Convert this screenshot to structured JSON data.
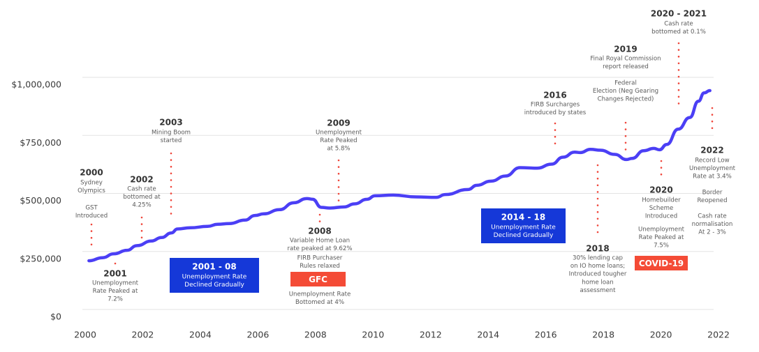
{
  "chart_data": {
    "type": "line",
    "title": "",
    "xlabel": "",
    "ylabel": "",
    "xlim": [
      2000,
      2022
    ],
    "ylim": [
      0,
      1000000
    ],
    "x_ticks": [
      "2000",
      "2002",
      "2004",
      "2006",
      "2008",
      "2010",
      "2012",
      "2014",
      "2016",
      "2018",
      "2020",
      "2022"
    ],
    "y_ticks": [
      "$0",
      "$250,000",
      "$500,000",
      "$750,000",
      "$1,000,000"
    ],
    "y_tick_values": [
      0,
      250000,
      500000,
      750000,
      1000000
    ],
    "grid": "horizontal",
    "legend": "none",
    "series": [
      {
        "color": "#4b3ff5",
        "points": [
          [
            2000.13,
            210000
          ],
          [
            2000.6,
            223000
          ],
          [
            2001.0,
            240000
          ],
          [
            2001.45,
            255000
          ],
          [
            2001.8,
            275000
          ],
          [
            2002.3,
            295000
          ],
          [
            2002.65,
            310000
          ],
          [
            2003.0,
            330000
          ],
          [
            2003.2,
            347000
          ],
          [
            2003.65,
            352000
          ],
          [
            2004.25,
            358000
          ],
          [
            2004.6,
            367000
          ],
          [
            2005.0,
            370000
          ],
          [
            2005.55,
            385000
          ],
          [
            2005.9,
            405000
          ],
          [
            2006.2,
            412000
          ],
          [
            2006.75,
            430000
          ],
          [
            2007.25,
            460000
          ],
          [
            2007.7,
            478000
          ],
          [
            2007.9,
            475000
          ],
          [
            2008.2,
            440000
          ],
          [
            2008.5,
            437000
          ],
          [
            2009.0,
            442000
          ],
          [
            2009.35,
            455000
          ],
          [
            2009.8,
            475000
          ],
          [
            2010.06,
            490000
          ],
          [
            2010.7,
            493000
          ],
          [
            2011.5,
            485000
          ],
          [
            2012.2,
            483000
          ],
          [
            2012.5,
            495000
          ],
          [
            2013.3,
            517000
          ],
          [
            2013.6,
            535000
          ],
          [
            2014.1,
            553000
          ],
          [
            2014.6,
            575000
          ],
          [
            2015.1,
            611000
          ],
          [
            2015.7,
            609000
          ],
          [
            2016.2,
            626000
          ],
          [
            2016.6,
            656000
          ],
          [
            2017.0,
            678000
          ],
          [
            2017.2,
            676000
          ],
          [
            2017.55,
            690000
          ],
          [
            2017.9,
            686000
          ],
          [
            2018.4,
            668000
          ],
          [
            2018.8,
            646000
          ],
          [
            2019.0,
            651000
          ],
          [
            2019.4,
            684000
          ],
          [
            2019.75,
            694000
          ],
          [
            2019.95,
            688000
          ],
          [
            2020.2,
            711000
          ],
          [
            2020.6,
            777000
          ],
          [
            2021.0,
            827000
          ],
          [
            2021.3,
            897000
          ],
          [
            2021.5,
            933000
          ],
          [
            2021.7,
            943000
          ]
        ]
      }
    ],
    "annotations": [
      {
        "title": "2000",
        "blocks": [
          [
            "Sydney",
            "Olympics"
          ],
          [
            "GST",
            "Introduced"
          ]
        ]
      },
      {
        "title": "2001",
        "blocks": [
          [
            "Unemployment",
            "Rate Peaked at",
            "7.2%"
          ]
        ]
      },
      {
        "title": "2002",
        "blocks": [
          [
            "Cash rate",
            "bottomed at",
            "4.25%"
          ]
        ]
      },
      {
        "title": "2003",
        "blocks": [
          [
            "Mining Boom",
            "started"
          ]
        ]
      },
      {
        "title": "2008",
        "blocks": [
          [
            "Variable Home Loan",
            "rate peaked at 9.62%"
          ],
          [
            "FIRB Purchaser",
            "Rules relaxed"
          ],
          [
            "Unemployment Rate",
            "Bottomed at 4%"
          ]
        ]
      },
      {
        "title": "2009",
        "blocks": [
          [
            "Unemployment",
            "Rate Peaked",
            "at 5.8%"
          ]
        ]
      },
      {
        "title": "2016",
        "blocks": [
          [
            "FIRB Surcharges",
            "introduced by states"
          ]
        ]
      },
      {
        "title": "2018",
        "blocks": [
          [
            "30% lending cap",
            "on IO home loans;",
            "Introduced tougher",
            "home loan",
            "assessment"
          ]
        ]
      },
      {
        "title": "2019",
        "blocks": [
          [
            "Final Royal Commission",
            "report released"
          ],
          [
            "Federal",
            "Election (Neg Gearing",
            "Changes Rejected)"
          ]
        ]
      },
      {
        "title": "2020",
        "blocks": [
          [
            "Homebuilder",
            "Scheme",
            "Introduced"
          ],
          [
            "Unemployment",
            "Rate Peaked at",
            "7.5%"
          ]
        ]
      },
      {
        "title": "2020 - 2021",
        "blocks": [
          [
            "Cash rate",
            "bottomed at 0.1%"
          ]
        ]
      },
      {
        "title": "2022",
        "blocks": [
          [
            "Record Low",
            "Unemployment",
            "Rate at 3.4%"
          ],
          [
            "Border",
            "Reopened"
          ],
          [
            "Cash rate",
            "normalisation",
            "At 2 - 3%"
          ]
        ]
      }
    ],
    "period_boxes": [
      {
        "title": "2001 - 08",
        "lines": [
          "Unemployment Rate",
          "Declined Gradually"
        ],
        "color": "#1538d8"
      },
      {
        "title": "2014 - 18",
        "lines": [
          "Unemployment Rate",
          "Declined Gradually"
        ],
        "color": "#1538d8"
      }
    ],
    "badges": [
      {
        "label": "GFC",
        "color": "#f44b36"
      },
      {
        "label": "COVID-19",
        "color": "#f44b36"
      }
    ],
    "marker_color": "#f0463b"
  }
}
